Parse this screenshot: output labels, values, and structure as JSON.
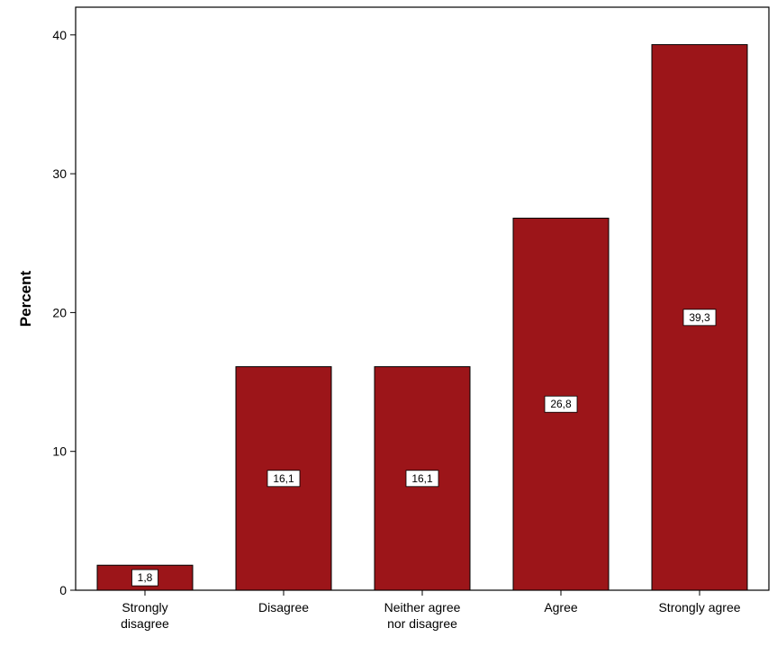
{
  "chart_data": {
    "type": "bar",
    "title": "",
    "xlabel": "",
    "ylabel": "Percent",
    "categories": [
      [
        "Strongly",
        "disagree"
      ],
      [
        "Disagree"
      ],
      [
        "Neither agree",
        "nor disagree"
      ],
      [
        "Agree"
      ],
      [
        "Strongly agree"
      ]
    ],
    "values": [
      1.8,
      16.1,
      16.1,
      26.8,
      39.3
    ],
    "data_labels": [
      "1,8",
      "16,1",
      "16,1",
      "26,8",
      "39,3"
    ],
    "ylim": [
      0,
      42
    ],
    "yticks": [
      0,
      10,
      20,
      30,
      40
    ],
    "grid": false,
    "legend": "none",
    "colors": {
      "bar_fill": "#9c1519",
      "bar_stroke": "#000000",
      "label_box_fill": "#ffffff",
      "axis": "#000000",
      "background": "#ffffff"
    }
  }
}
